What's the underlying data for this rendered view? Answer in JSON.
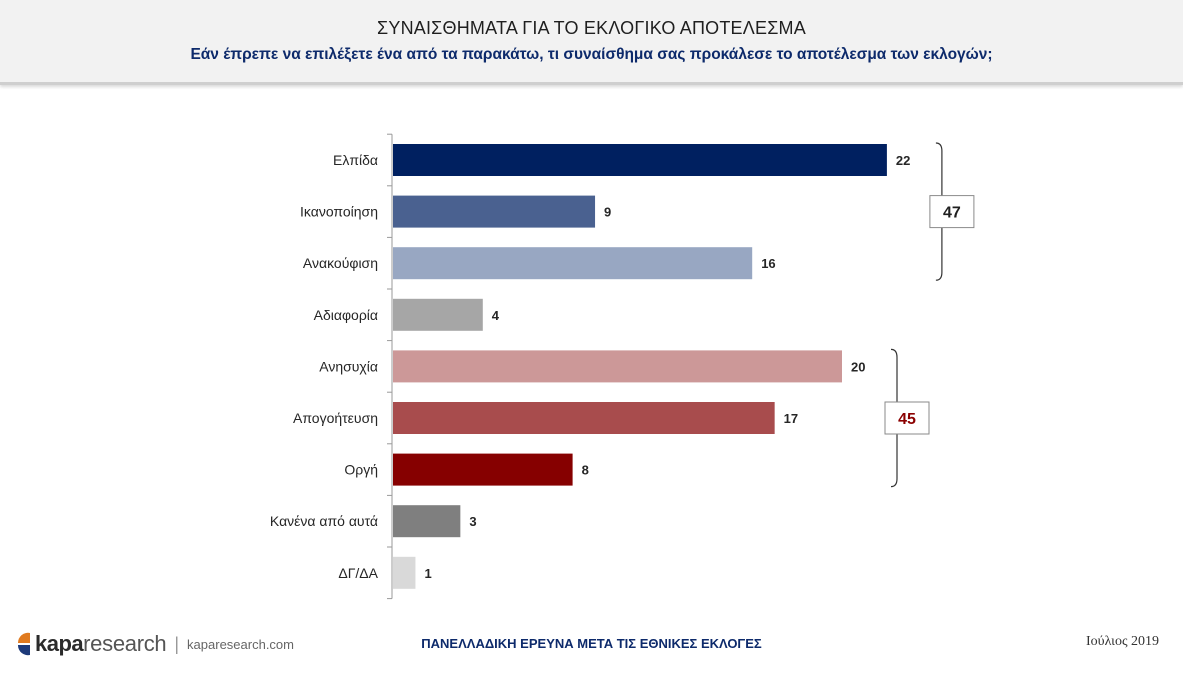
{
  "header": {
    "title": "ΣΥΝΑΙΣΘΗΜΑΤΑ ΓΙΑ ΤΟ ΕΚΛΟΓΙΚΟ ΑΠΟΤΕΛΕΣΜΑ",
    "subtitle": "Εάν έπρεπε να επιλέξετε ένα από τα παρακάτω, τι συναίσθημα σας προκάλεσε το αποτέλεσμα των εκλογών;"
  },
  "chart_data": {
    "type": "bar",
    "orientation": "horizontal",
    "title": "",
    "xlabel": "",
    "ylabel": "",
    "grid": false,
    "categories": [
      "Ελπίδα",
      "Ικανοποίηση",
      "Ανακούφιση",
      "Αδιαφορία",
      "Ανησυχία",
      "Απογοήτευση",
      "Οργή",
      "Κανένα από αυτά",
      "ΔΓ/ΔΑ"
    ],
    "values": [
      22,
      9,
      16,
      4,
      20,
      17,
      8,
      3,
      1
    ],
    "colors": [
      "#002060",
      "#4a6190",
      "#98a7c2",
      "#a6a6a6",
      "#cc9898",
      "#a84c4d",
      "#860000",
      "#7f7f7f",
      "#d9d9d9"
    ],
    "groups": [
      {
        "label": "47",
        "from": 0,
        "to": 2,
        "color": "#1f1f1f"
      },
      {
        "label": "45",
        "from": 4,
        "to": 6,
        "color": "#8b0000"
      }
    ]
  },
  "footer": {
    "logo_bold": "kapa",
    "logo_light": "research",
    "separator": "|",
    "url": "kaparesearch.com",
    "center": "ΠΑΝΕΛΛΑΔΙΚΗ ΕΡΕΥΝΑ ΜΕΤΑ ΤΙΣ ΕΘΝΙΚΕΣ ΕΚΛΟΓΕΣ",
    "date": "Ιούλιος 2019",
    "logo_color": "#e07a1f"
  }
}
